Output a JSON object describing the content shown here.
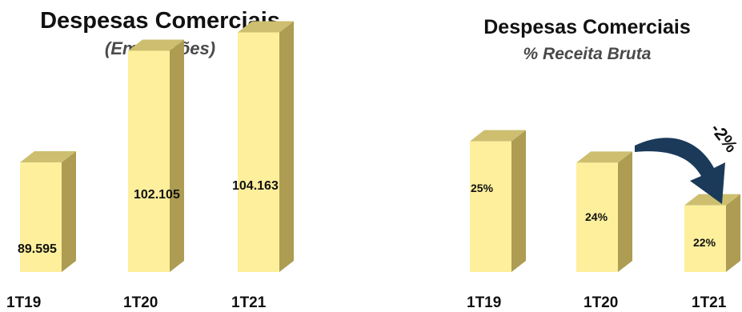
{
  "chart_data": [
    {
      "type": "bar",
      "title": "Despesas Comerciais",
      "subtitle": "(Em milhões)",
      "categories": [
        "1T19",
        "1T20",
        "1T21"
      ],
      "values": [
        89.595,
        102.105,
        104.163
      ],
      "value_labels": [
        "89.595",
        "102.105",
        "104.163"
      ],
      "xlabel": "",
      "ylabel": "",
      "ylim": [
        80,
        106
      ],
      "grid": false,
      "legend": "none",
      "style": "3d"
    },
    {
      "type": "bar",
      "title": "Despesas Comerciais",
      "subtitle": "% Receita Bruta",
      "categories": [
        "1T19",
        "1T20",
        "1T21"
      ],
      "values": [
        25,
        24,
        22
      ],
      "value_labels": [
        "25%",
        "24%",
        "22%"
      ],
      "xlabel": "",
      "ylabel": "",
      "ylim": [
        20,
        26
      ],
      "grid": false,
      "legend": "none",
      "style": "3d",
      "annotation": {
        "text": "-2%",
        "from": "1T20",
        "to": "1T21"
      }
    }
  ],
  "colors": {
    "bar_front": "#fdef9c",
    "bar_top": "#cdbf6f",
    "bar_side": "#ad9c52",
    "arrow": "#1b3a5a"
  }
}
